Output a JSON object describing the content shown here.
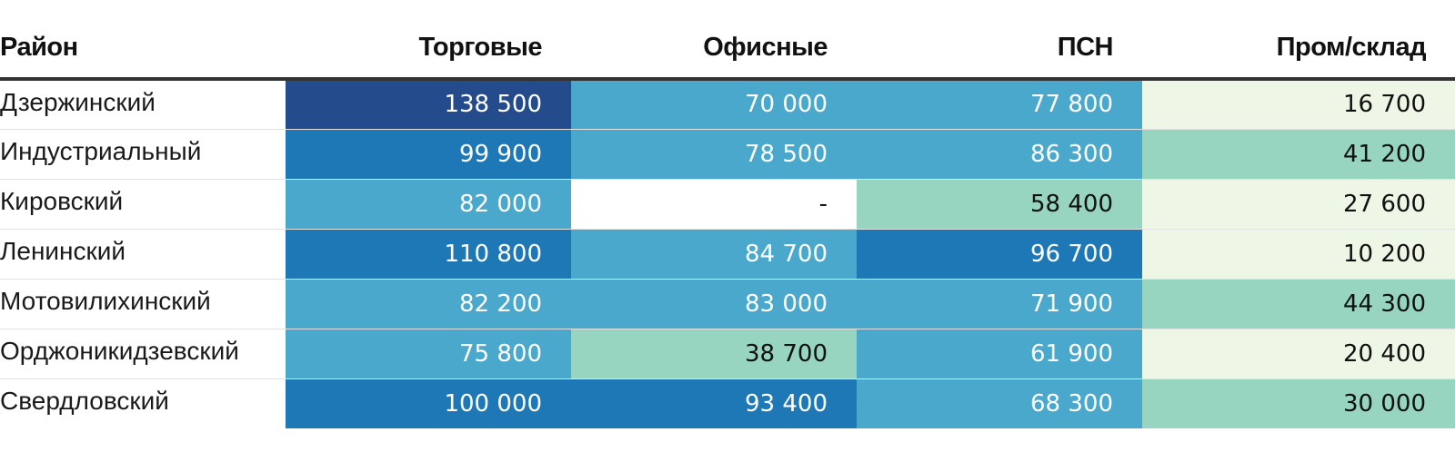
{
  "chart_data": {
    "type": "table",
    "columns": [
      "Район",
      "Торговые",
      "Офисные",
      "ПСН",
      "Пром/склад"
    ],
    "rows": [
      {
        "district": "Дзержинский",
        "values": [
          "138 500",
          "70 000",
          "77 800",
          "16 700"
        ],
        "raw": [
          138500,
          70000,
          77800,
          16700
        ]
      },
      {
        "district": "Индустриальный",
        "values": [
          "99 900",
          "78 500",
          "86 300",
          "41 200"
        ],
        "raw": [
          99900,
          78500,
          86300,
          41200
        ]
      },
      {
        "district": "Кировский",
        "values": [
          "82 000",
          "-",
          "58 400",
          "27 600"
        ],
        "raw": [
          82000,
          null,
          58400,
          27600
        ]
      },
      {
        "district": "Ленинский",
        "values": [
          "110 800",
          "84 700",
          "96 700",
          "10 200"
        ],
        "raw": [
          110800,
          84700,
          96700,
          10200
        ]
      },
      {
        "district": "Мотовилихинский",
        "values": [
          "82 200",
          "83 000",
          "71 900",
          "44 300"
        ],
        "raw": [
          82200,
          83000,
          71900,
          44300
        ]
      },
      {
        "district": "Орджоникидзевский",
        "values": [
          "75 800",
          "38 700",
          "61 900",
          "20 400"
        ],
        "raw": [
          75800,
          38700,
          61900,
          20400
        ]
      },
      {
        "district": "Свердловский",
        "values": [
          "100 000",
          "93 400",
          "68 300",
          "30 000"
        ],
        "raw": [
          100000,
          93400,
          68300,
          30000
        ]
      }
    ],
    "color_scale": [
      {
        "min": 0,
        "max": 29999,
        "bg": "#eef7e6",
        "fg": "#111111"
      },
      {
        "min": 30000,
        "max": 59999,
        "bg": "#97d5c0",
        "fg": "#111111"
      },
      {
        "min": 60000,
        "max": 89999,
        "bg": "#4aa8cc",
        "fg": "#ffffff"
      },
      {
        "min": 90000,
        "max": 119999,
        "bg": "#1e78b6",
        "fg": "#ffffff"
      },
      {
        "min": 120000,
        "max": 999999,
        "bg": "#244c8d",
        "fg": "#ffffff"
      }
    ],
    "empty_cell": {
      "bg": "#ffffff",
      "fg": "#111111"
    }
  }
}
